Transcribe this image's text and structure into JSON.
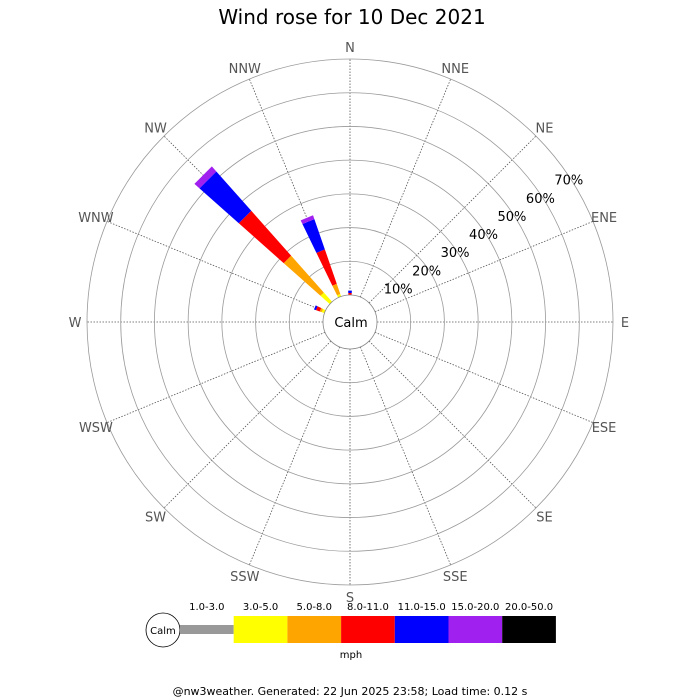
{
  "chart_data": {
    "type": "wind-rose",
    "title": "Wind rose for 10 Dec 2021",
    "center_label": "Calm",
    "directions": [
      "N",
      "NNE",
      "NE",
      "ENE",
      "E",
      "ESE",
      "SE",
      "SSE",
      "S",
      "SSW",
      "SW",
      "WSW",
      "W",
      "WNW",
      "NW",
      "NNW"
    ],
    "rings": [
      "10%",
      "20%",
      "30%",
      "40%",
      "50%",
      "60%",
      "70%"
    ],
    "r_max_percent": 70,
    "unit": "mph",
    "speed_bins": [
      {
        "label": "1.0-3.0",
        "color": "#999999"
      },
      {
        "label": "3.0-5.0",
        "color": "#ffff00"
      },
      {
        "label": "5.0-8.0",
        "color": "#ffa500"
      },
      {
        "label": "8.0-11.0",
        "color": "#ff0000"
      },
      {
        "label": "11.0-15.0",
        "color": "#0000ff"
      },
      {
        "label": "15.0-20.0",
        "color": "#a020f0"
      },
      {
        "label": "20.0-50.0",
        "color": "#000000"
      }
    ],
    "series": [
      {
        "direction": "N",
        "values": [
          0,
          0,
          0,
          0.6,
          0.7,
          0,
          0
        ]
      },
      {
        "direction": "NNW",
        "values": [
          0,
          0.8,
          3.2,
          10.8,
          9.5,
          1.2,
          0
        ]
      },
      {
        "direction": "NW",
        "values": [
          0,
          3.7,
          14.6,
          17.8,
          15.6,
          2.0,
          0
        ]
      },
      {
        "direction": "WNW",
        "values": [
          0,
          0.9,
          0.6,
          1.2,
          0.6,
          0,
          0
        ]
      }
    ],
    "legend_calm_label": "Calm"
  },
  "footer": "@nw3weather. Generated: 22 Jun 2025 23:58; Load time: 0.12 s"
}
